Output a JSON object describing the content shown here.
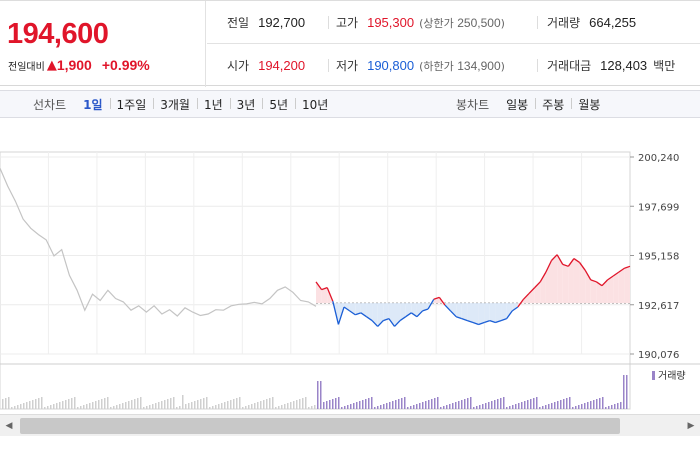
{
  "quote": {
    "price": "194,600",
    "change_label": "전일대비",
    "change_arrow": "▲",
    "change_value": "1,900",
    "change_pct": "+0.99%"
  },
  "stats": {
    "prev_close_label": "전일",
    "prev_close": "192,700",
    "high_label": "고가",
    "high": "195,300",
    "upper_limit_label": "(상한가",
    "upper_limit": "250,500",
    "upper_limit_close": ")",
    "volume_label": "거래량",
    "volume": "664,255",
    "open_label": "시가",
    "open": "194,200",
    "low_label": "저가",
    "low": "190,800",
    "lower_limit_label": "(하한가",
    "lower_limit": "134,900",
    "lower_limit_close": ")",
    "amount_label": "거래대금",
    "amount": "128,403",
    "amount_unit": "백만"
  },
  "toolbar": {
    "line_label": "선차트",
    "line_periods": [
      "1일",
      "1주일",
      "3개월",
      "1년",
      "3년",
      "5년",
      "10년"
    ],
    "line_active": 0,
    "candle_label": "봉차트",
    "candle_periods": [
      "일봉",
      "주봉",
      "월봉"
    ]
  },
  "colors": {
    "up": "#e0152a",
    "down": "#1a5ed6",
    "history_line": "#c4c4c4",
    "up_fill": "#fbe1e3",
    "down_fill": "#dde9f8",
    "volume_bar": "#9a84c8"
  },
  "chart_data": {
    "type": "line",
    "y_ticks": [
      "200,240",
      "197,699",
      "195,158",
      "192,617",
      "190,076"
    ],
    "y_tick_values": [
      200240,
      197699,
      195158,
      192617,
      190076
    ],
    "ylim": [
      190076,
      200240
    ],
    "baseline": 192700,
    "volume_legend": "거래량",
    "history_series": [
      199600,
      198800,
      197900,
      197100,
      196500,
      196300,
      195900,
      195200,
      195400,
      194200,
      193300,
      192400,
      193100,
      192900,
      193300,
      193000,
      192700,
      192400,
      192500,
      192300,
      192500,
      192200,
      192300,
      192100,
      192400,
      192300,
      192000,
      192200,
      192300,
      192400,
      192500,
      192700,
      192600,
      192800,
      192600,
      193000,
      193300,
      193600,
      193200,
      192900,
      192700,
      192600
    ],
    "today_series": [
      193800,
      193400,
      193500,
      192800,
      191600,
      192500,
      192300,
      192100,
      192200,
      192000,
      191800,
      191500,
      191800,
      191900,
      191500,
      191800,
      192000,
      192200,
      192000,
      192300,
      192400,
      192900,
      193000,
      192600,
      192300,
      192000,
      191900,
      191800,
      191700,
      191600,
      191700,
      191800,
      191700,
      191800,
      191900,
      192300,
      192500,
      192900,
      193200,
      193500,
      193800,
      194300,
      194900,
      195200,
      194700,
      194600,
      195000,
      194800,
      194400,
      193900,
      193800,
      193600,
      193900,
      194100,
      194300,
      194500,
      194600
    ]
  }
}
